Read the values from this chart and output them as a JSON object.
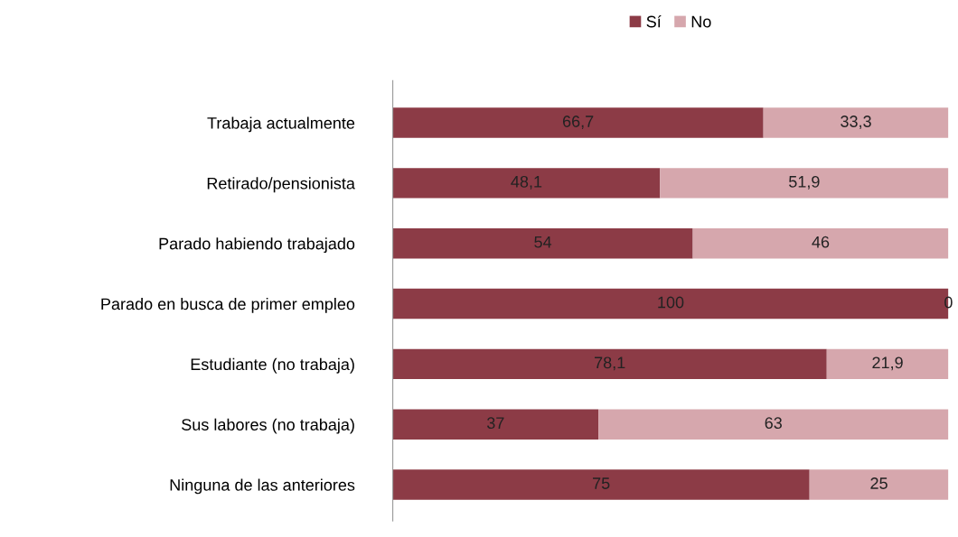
{
  "chart_data": {
    "type": "bar",
    "orientation": "horizontal",
    "stacked": true,
    "legend": "top",
    "categories": [
      "Trabaja actualmente",
      "Retirado/pensionista",
      "Parado habiendo trabajado",
      "Parado en busca de primer empleo",
      "Estudiante (no trabaja)",
      "Sus labores (no trabaja)",
      "Ninguna de las anteriores"
    ],
    "series": [
      {
        "name": "Sí",
        "color": "#8c3b46",
        "values": [
          66.7,
          48.1,
          54,
          100,
          78.1,
          37,
          75
        ],
        "value_labels": [
          "66,7",
          "48,1",
          "54",
          "100",
          "78,1",
          "37",
          "75"
        ]
      },
      {
        "name": "No",
        "color": "#d6a7ad",
        "values": [
          33.3,
          51.9,
          46,
          0,
          21.9,
          63,
          25
        ],
        "value_labels": [
          "33,3",
          "51,9",
          "46",
          "0",
          "21,9",
          "63",
          "25"
        ]
      }
    ]
  }
}
